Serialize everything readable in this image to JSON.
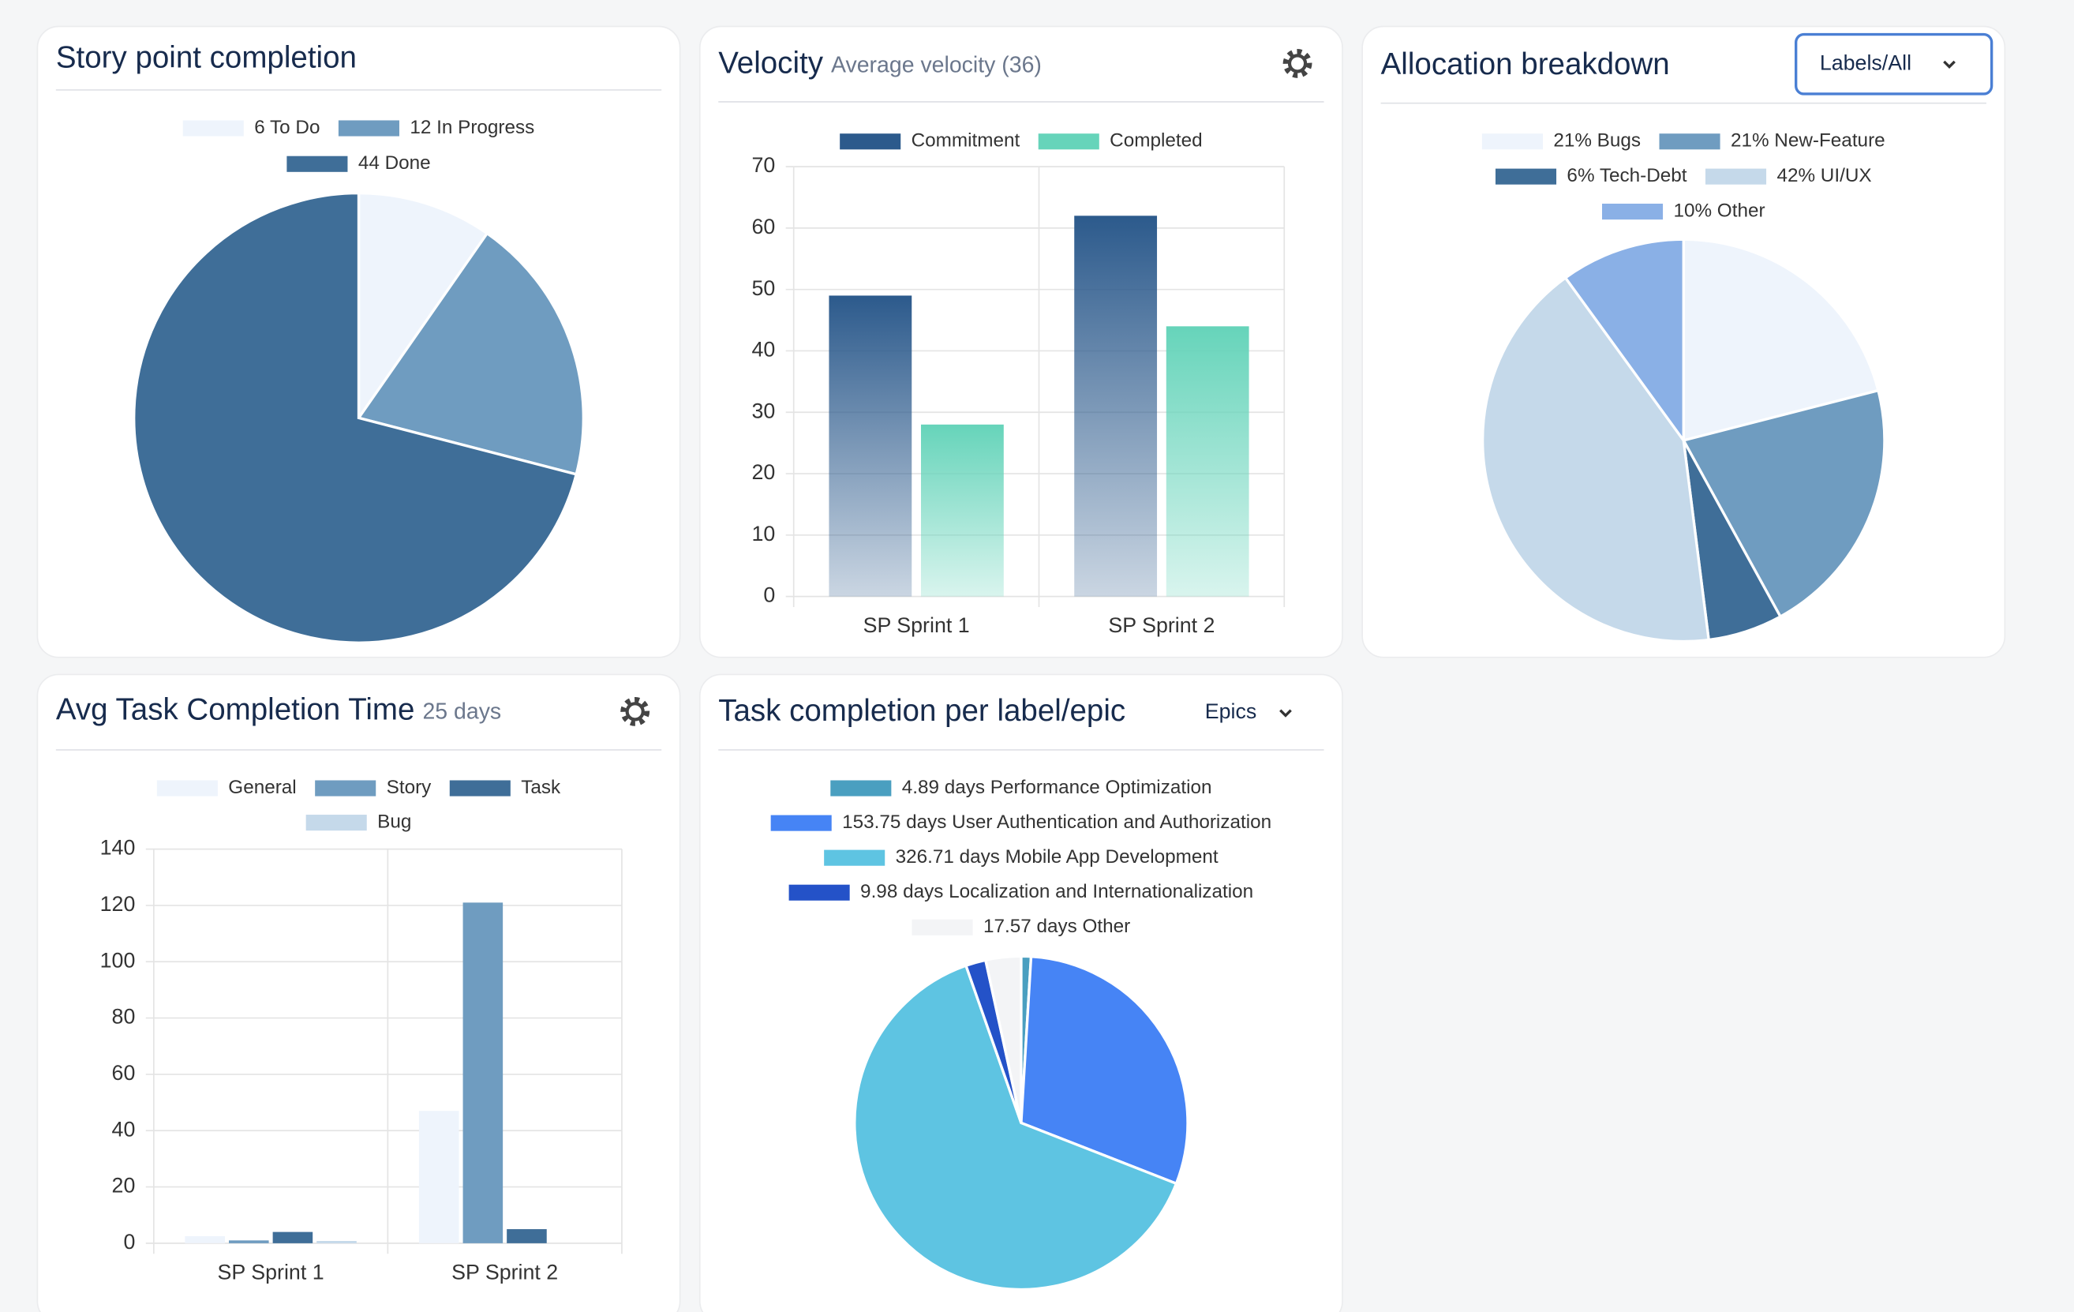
{
  "chart_data": [
    {
      "type": "pie",
      "title": "Story point completion",
      "labels": [
        "6 To Do",
        "12 In Progress",
        "44 Done"
      ],
      "values": [
        6,
        12,
        44
      ],
      "colors": [
        "#eef4fc",
        "#6f9cc0",
        "#3f6e98"
      ]
    },
    {
      "type": "bar",
      "title": "Velocity",
      "subtitle": "Average velocity (36)",
      "categories": [
        "SP Sprint 1",
        "SP Sprint 2"
      ],
      "series": [
        {
          "name": "Commitment",
          "color": "#2c5a8c",
          "values": [
            49,
            62
          ]
        },
        {
          "name": "Completed",
          "color": "#66d4ba",
          "values": [
            28,
            44
          ]
        }
      ],
      "gradient": true,
      "ylim": [
        0,
        70
      ],
      "yticks": [
        0,
        10,
        20,
        30,
        40,
        50,
        60,
        70
      ],
      "grid": true
    },
    {
      "type": "pie",
      "title": "Allocation breakdown",
      "button": "Labels/All",
      "labels": [
        "21% Bugs",
        "21% New-Feature",
        "6% Tech-Debt",
        "42% UI/UX",
        "10% Other"
      ],
      "values": [
        21,
        21,
        6,
        42,
        10
      ],
      "colors": [
        "#eef4fc",
        "#6f9cc0",
        "#3f6e98",
        "#c5d9ea",
        "#8ab0e6"
      ]
    },
    {
      "type": "bar",
      "title": "Avg Task Completion Time",
      "subtitle": "25 days",
      "categories": [
        "SP Sprint 1",
        "SP Sprint 2"
      ],
      "series": [
        {
          "name": "General",
          "color": "#eef4fc",
          "values": [
            2.5,
            47
          ]
        },
        {
          "name": "Story",
          "color": "#6f9cc0",
          "values": [
            1,
            121
          ]
        },
        {
          "name": "Task",
          "color": "#3f6e98",
          "values": [
            4,
            5
          ]
        },
        {
          "name": "Bug",
          "color": "#c5d9ea",
          "values": [
            0.8,
            0
          ]
        }
      ],
      "ylim": [
        0,
        140
      ],
      "yticks": [
        0,
        20,
        40,
        60,
        80,
        100,
        120,
        140
      ],
      "grid": true
    },
    {
      "type": "pie",
      "title": "Task completion per label/epic",
      "dropdown": "Epics",
      "labels": [
        "4.89 days Performance Optimization",
        "153.75 days  User Authentication and Authorization",
        "326.71 days Mobile App Development",
        "9.98 days Localization and Internationalization",
        "17.57 days Other"
      ],
      "values": [
        4.89,
        153.75,
        326.71,
        9.98,
        17.57
      ],
      "colors": [
        "#4a9fc0",
        "#4684f5",
        "#5ec4e2",
        "#2452c8",
        "#f3f4f6"
      ]
    }
  ]
}
